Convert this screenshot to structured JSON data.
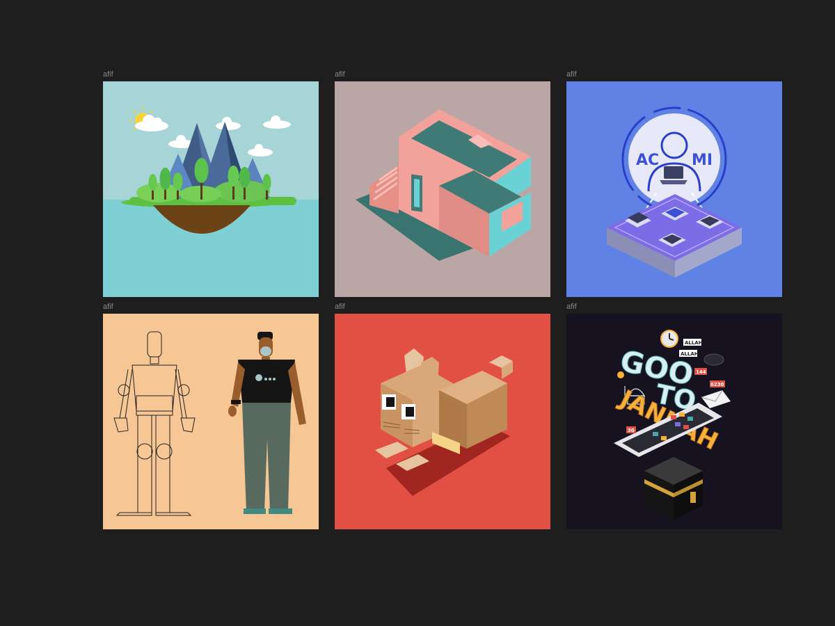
{
  "frames": [
    {
      "label": "afif",
      "colors": {
        "bg": "#a7d4d6",
        "water": "#7fd0d4"
      }
    },
    {
      "label": "afif",
      "colors": {
        "bg": "#b9a6a5",
        "wall": "#f2a29a",
        "accent": "#6ad2d4"
      }
    },
    {
      "label": "afif",
      "colors": {
        "bg": "#5f82e4",
        "panel": "#7c6ce6"
      },
      "texts": {
        "left_letters": "AC",
        "right_letters": "MI"
      }
    },
    {
      "label": "afif",
      "colors": {
        "bg": "#f7c695",
        "shirt": "#151515",
        "pants": "#586a5e"
      }
    },
    {
      "label": "afif",
      "colors": {
        "bg": "#e24f43",
        "cat": "#d9a878"
      }
    },
    {
      "label": "afif",
      "colors": {
        "bg": "#16121f",
        "text": "#d8eef0",
        "accent": "#f7b13a"
      },
      "texts": {
        "word1": "GOO",
        "word2": "TO",
        "word3": "JANNAH",
        "badge1": "ALLAH",
        "badge2": "ALLAH",
        "badge3": "144",
        "badge4": "6230",
        "badge5": "30"
      }
    }
  ]
}
